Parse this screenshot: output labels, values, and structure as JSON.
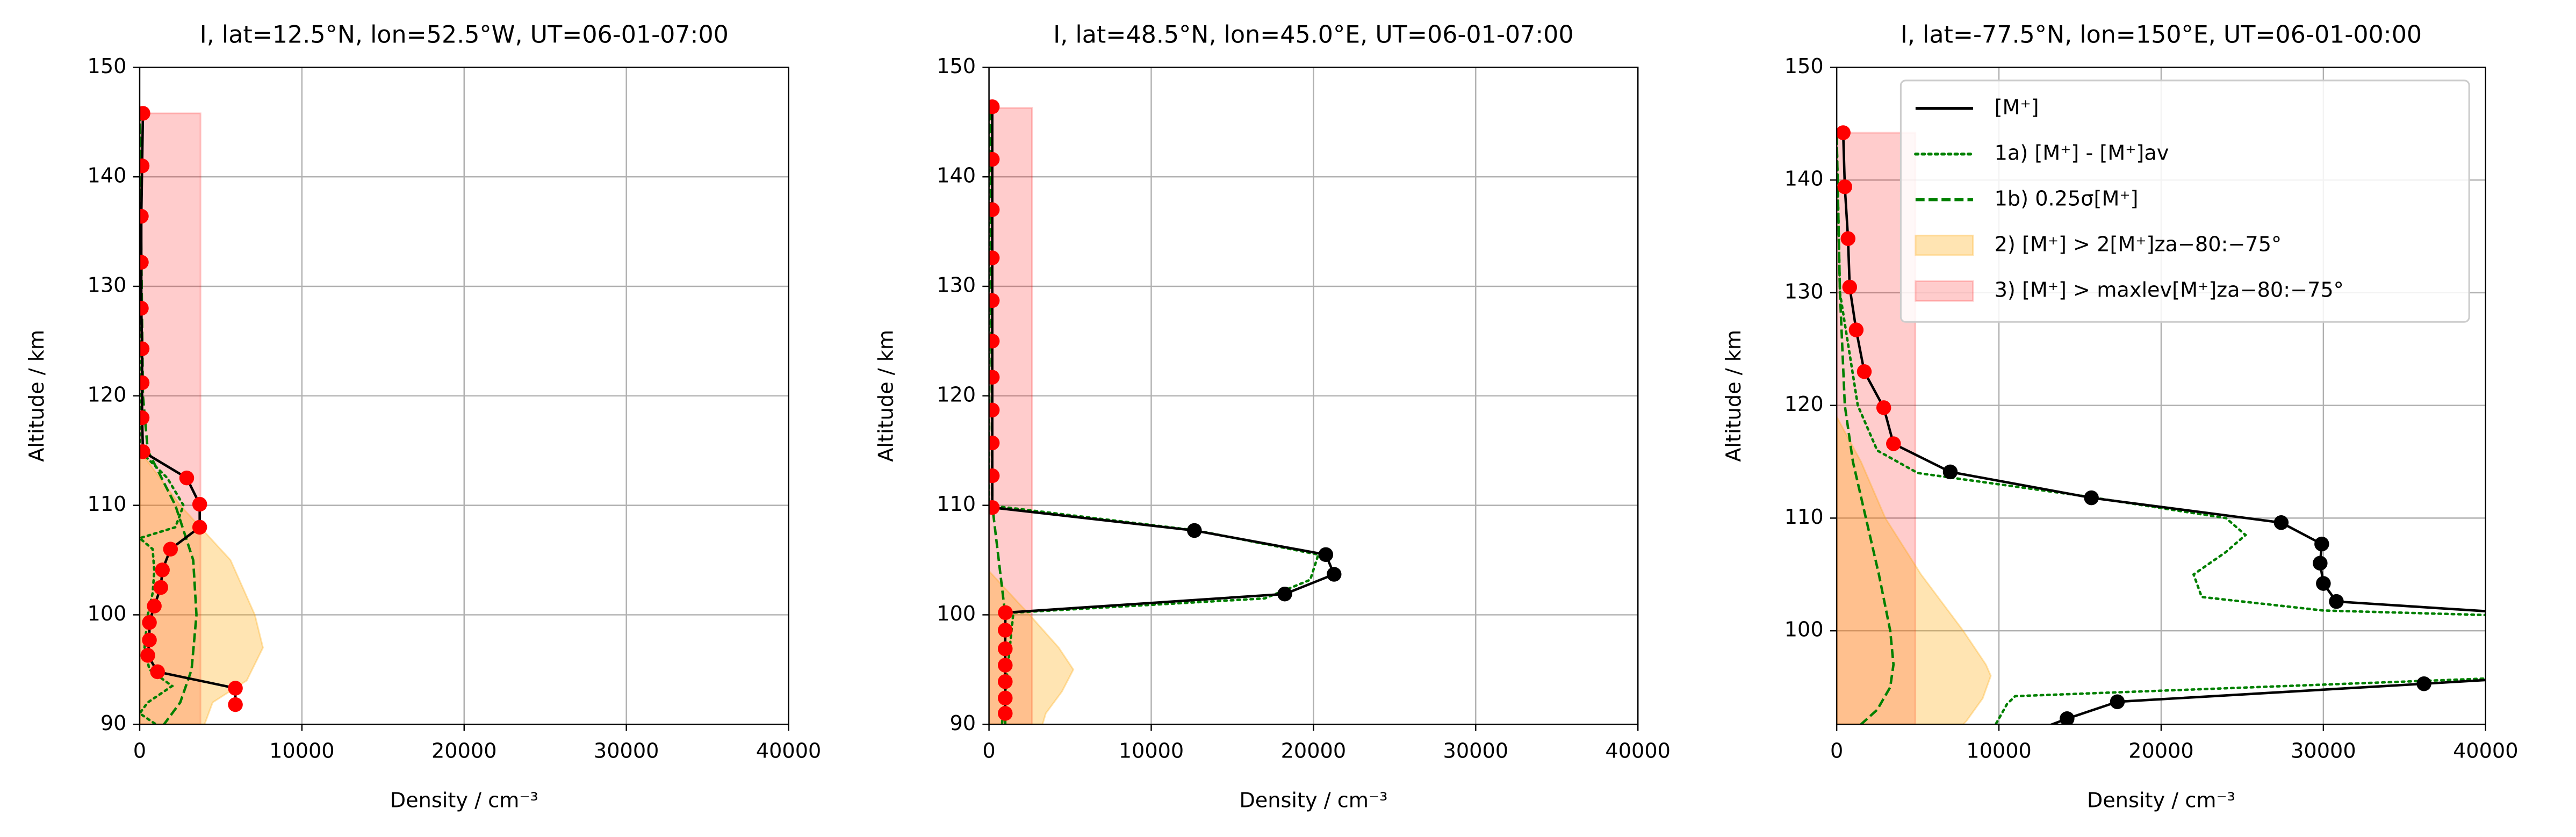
{
  "chart_data": [
    {
      "type": "line",
      "title": "I, lat=12.5°N, lon=52.5°W, UT=06-01-07:00",
      "xlabel": "Density / cm⁻³",
      "ylabel": "Altitude / km",
      "xlim": [
        0,
        40000
      ],
      "ylim": [
        90,
        150
      ],
      "xticks": [
        0,
        10000,
        20000,
        30000,
        40000
      ],
      "yticks": [
        90,
        100,
        110,
        120,
        130,
        140,
        150
      ],
      "grid": true,
      "legend": null,
      "series": [
        {
          "style": "solid",
          "color": "#000000",
          "y": [
            145.8,
            141.0,
            136.4,
            132.2,
            128.0,
            124.3,
            121.2,
            118.0,
            114.9,
            112.5,
            110.1,
            108.0,
            106.0,
            104.1,
            102.5,
            100.8,
            99.3,
            97.7,
            96.3,
            94.8,
            93.3,
            91.8
          ],
          "x": [
            200,
            150,
            100,
            100,
            100,
            150,
            150,
            150,
            200,
            2900,
            3700,
            3700,
            1900,
            1400,
            1300,
            900,
            600,
            600,
            500,
            1100,
            5900,
            5900
          ],
          "marker_colors": [
            "#ff0000",
            "#ff0000",
            "#ff0000",
            "#ff0000",
            "#ff0000",
            "#ff0000",
            "#ff0000",
            "#ff0000",
            "#ff0000",
            "#ff0000",
            "#ff0000",
            "#ff0000",
            "#ff0000",
            "#ff0000",
            "#ff0000",
            "#ff0000",
            "#ff0000",
            "#ff0000",
            "#ff0000",
            "#ff0000",
            "#ff0000",
            "#ff0000"
          ]
        },
        {
          "style": "dotted",
          "color": "#008000",
          "y": [
            146,
            115,
            112.5,
            110,
            108,
            107,
            106,
            104,
            102,
            100,
            97,
            95,
            93.5,
            92,
            91,
            90
          ],
          "x": [
            0,
            0,
            1700,
            2700,
            2200,
            0,
            800,
            900,
            800,
            500,
            300,
            600,
            2000,
            500,
            0,
            1000
          ]
        },
        {
          "style": "dashed",
          "color": "#008000",
          "y": [
            146,
            120,
            115,
            110,
            105,
            100,
            95,
            92,
            90
          ],
          "x": [
            0,
            200,
            500,
            2200,
            3300,
            3500,
            3200,
            2500,
            1500
          ]
        },
        {
          "style": "fill",
          "color": "#ffa500",
          "alpha": 0.3,
          "y": [
            115,
            110,
            105,
            100,
            97,
            94,
            92,
            90
          ],
          "x": [
            0,
            2500,
            5600,
            7100,
            7600,
            6600,
            4500,
            4000
          ]
        },
        {
          "style": "span",
          "color": "#ff0000",
          "alpha": 0.2,
          "x_max": 3750,
          "y_range": [
            90,
            145.8
          ]
        }
      ]
    },
    {
      "type": "line",
      "title": "I, lat=48.5°N, lon=45.0°E, UT=06-01-07:00",
      "xlabel": "Density / cm⁻³",
      "ylabel": "Altitude / km",
      "xlim": [
        0,
        40000
      ],
      "ylim": [
        90,
        150
      ],
      "xticks": [
        0,
        10000,
        20000,
        30000,
        40000
      ],
      "yticks": [
        90,
        100,
        110,
        120,
        130,
        140,
        150
      ],
      "grid": true,
      "legend": null,
      "series": [
        {
          "style": "solid",
          "color": "#000000",
          "y": [
            146.4,
            141.6,
            137.0,
            132.6,
            128.7,
            125.0,
            121.7,
            118.7,
            115.7,
            112.7,
            109.8,
            107.7,
            105.5,
            103.7,
            101.9,
            100.2,
            98.6,
            96.9,
            95.4,
            93.9,
            92.4,
            91.0
          ],
          "x": [
            200,
            200,
            200,
            200,
            200,
            200,
            200,
            200,
            200,
            200,
            200,
            12660,
            20760,
            21270,
            18230,
            1010,
            1000,
            1000,
            1000,
            1000,
            1000,
            1000
          ],
          "marker_colors": [
            "#ff0000",
            "#ff0000",
            "#ff0000",
            "#ff0000",
            "#ff0000",
            "#ff0000",
            "#ff0000",
            "#ff0000",
            "#ff0000",
            "#ff0000",
            "#ff0000",
            "#000000",
            "#000000",
            "#000000",
            "#000000",
            "#ff0000",
            "#ff0000",
            "#ff0000",
            "#ff0000",
            "#ff0000",
            "#ff0000",
            "#ff0000"
          ]
        },
        {
          "style": "dotted",
          "color": "#008000",
          "y": [
            146,
            110,
            107.7,
            105.5,
            103.2,
            101.5,
            100.2,
            90
          ],
          "x": [
            0,
            0,
            12800,
            20300,
            19800,
            17000,
            1500,
            800
          ]
        },
        {
          "style": "dashed",
          "color": "#008000",
          "y": [
            146,
            110,
            100,
            90
          ],
          "x": [
            100,
            200,
            1000,
            1000
          ]
        },
        {
          "style": "fill",
          "color": "#ffa500",
          "alpha": 0.3,
          "y": [
            104,
            100,
            97,
            95,
            93,
            91,
            90
          ],
          "x": [
            0,
            2500,
            4300,
            5200,
            4500,
            3500,
            3300
          ]
        },
        {
          "style": "span",
          "color": "#ff0000",
          "alpha": 0.2,
          "x_max": 2650,
          "y_range": [
            90,
            146.3
          ]
        }
      ]
    },
    {
      "type": "line",
      "title": "I, lat=-77.5°N, lon=150°E, UT=06-01-00:00",
      "xlabel": "Density / cm⁻³",
      "ylabel": "Altitude / km",
      "xlim": [
        0,
        40000
      ],
      "ylim": [
        91.7,
        150
      ],
      "xticks": [
        0,
        10000,
        20000,
        30000,
        40000
      ],
      "yticks": [
        100,
        110,
        120,
        130,
        140,
        150
      ],
      "grid": true,
      "legend": "upper right",
      "series": [
        {
          "name": "[M⁺]",
          "style": "solid",
          "color": "#000000",
          "y": [
            144.2,
            139.4,
            134.8,
            130.5,
            126.7,
            123.0,
            119.8,
            116.6,
            114.1,
            111.8,
            109.6,
            107.7,
            106.0,
            104.2,
            102.6,
            100.8,
            96.5,
            95.3,
            93.7,
            92.2,
            91.0
          ],
          "x": [
            400,
            500,
            700,
            800,
            1200,
            1700,
            2900,
            3500,
            7000,
            15700,
            27400,
            29900,
            29800,
            30000,
            30800,
            50000,
            50000,
            36200,
            17300,
            14200,
            12000
          ],
          "marker_colors": [
            "#ff0000",
            "#ff0000",
            "#ff0000",
            "#ff0000",
            "#ff0000",
            "#ff0000",
            "#ff0000",
            "#ff0000",
            "#000000",
            "#000000",
            "#000000",
            "#000000",
            "#000000",
            "#000000",
            "#000000",
            "#000000",
            "#000000",
            "#000000",
            "#000000",
            "#000000",
            "#000000"
          ]
        },
        {
          "name": "1a) [M⁺] - [M⁺]av",
          "style": "dotted",
          "color": "#008000",
          "y": [
            144,
            130,
            120,
            116,
            114,
            112,
            110,
            108.5,
            107,
            105,
            103,
            101.8,
            101.0,
            96.3,
            94.2,
            93.5,
            91.7
          ],
          "x": [
            0,
            200,
            1300,
            2500,
            5000,
            15000,
            24000,
            25200,
            24000,
            22000,
            22500,
            30000,
            50000,
            50000,
            11000,
            10500,
            9800
          ]
        },
        {
          "name": "1b) 0.25σ[M⁺]",
          "style": "dashed",
          "color": "#008000",
          "y": [
            144,
            130,
            120,
            115,
            110,
            105,
            100,
            97,
            95,
            93,
            91.7
          ],
          "x": [
            0,
            200,
            500,
            1000,
            1800,
            2600,
            3300,
            3500,
            3300,
            2500,
            1500
          ]
        },
        {
          "name": "2) [M⁺] > 2[M⁺]za−80:−75°",
          "style": "fill",
          "color": "#ffa500",
          "alpha": 0.3,
          "y": [
            119,
            115,
            110,
            105,
            100,
            97,
            96,
            94,
            92,
            91.7
          ],
          "x": [
            0,
            1500,
            3000,
            5200,
            7800,
            9200,
            9500,
            9000,
            8000,
            7800
          ]
        },
        {
          "name": "3) [M⁺] > maxlev[M⁺]za−80:−75°",
          "style": "span",
          "color": "#ff0000",
          "alpha": 0.2,
          "x_max": 4850,
          "y_range": [
            91.7,
            144.2
          ]
        }
      ]
    }
  ]
}
